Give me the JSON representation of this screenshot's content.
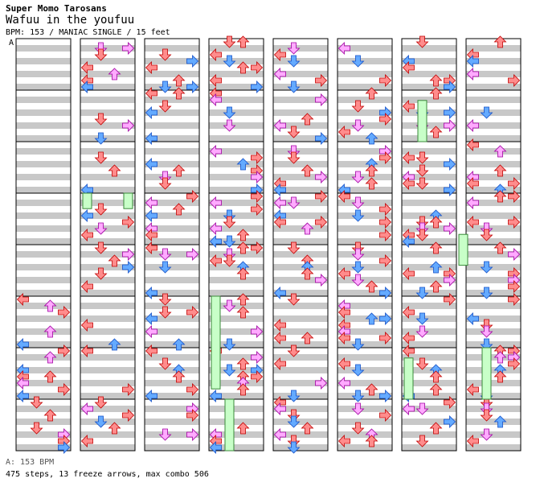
{
  "header": {
    "artist": "Super Momo Tarosans",
    "title": "Wafuu in the youfuu",
    "info": "BPM: 153 / MANIAC SINGLE / 15 feet"
  },
  "markers": {
    "bpm_marker": "A"
  },
  "footer": {
    "bpm_legend": "A: 153 BPM",
    "stats": "475 steps, 13 freeze arrows, max combo 506"
  },
  "chart_data": {
    "type": "other",
    "description_kind": "stepchart",
    "columns": 8,
    "measures_per_column": 8,
    "lanes": [
      "left",
      "down",
      "up",
      "right"
    ],
    "bpm": 153,
    "steps": 475,
    "freeze_arrows": 13,
    "max_combo": 506,
    "note_colors": {
      "quarter": "#ff8c8c",
      "eighth": "#64aaff",
      "sixteenth": "#ffaaff",
      "freeze": "#c8ffc8"
    },
    "stripe_colors": [
      "#c8c8c8",
      "#ffffff"
    ]
  }
}
